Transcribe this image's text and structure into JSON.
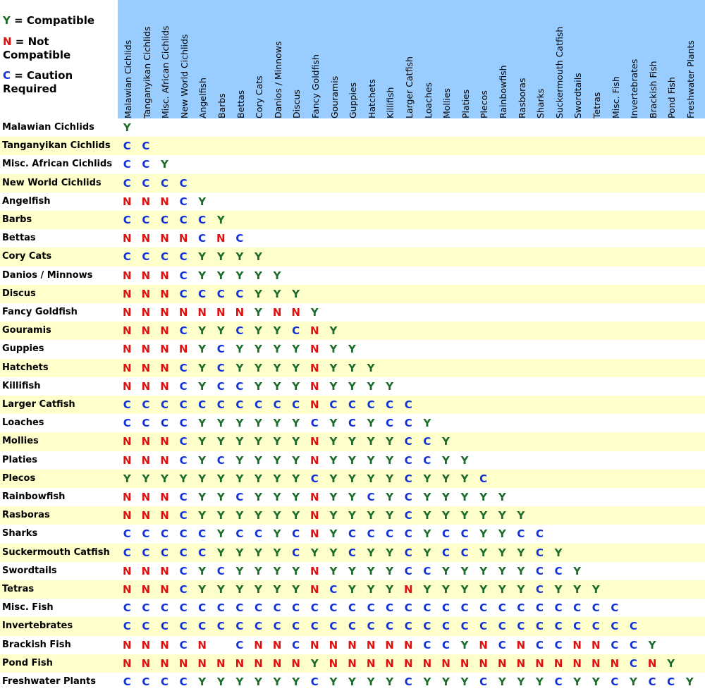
{
  "legend": [
    {
      "symbol": "Y",
      "text": "= Compatible"
    },
    {
      "symbol": "N",
      "text": "= Not Compatible"
    },
    {
      "symbol": "C",
      "text": "= Caution Required"
    }
  ],
  "symbol_colors": {
    "Y": "#1b6b2b",
    "N": "#e01010",
    "C": "#1030d8"
  },
  "columns": [
    "Malawian Cichlids",
    "Tanganyikan Cichlids",
    "Misc. African Cichlids",
    "New World Cichlids",
    "Angelfish",
    "Barbs",
    "Bettas",
    "Cory Cats",
    "Danios / Minnows",
    "Discus",
    "Fancy Goldfish",
    "Gouramis",
    "Guppies",
    "Hatchets",
    "Killifish",
    "Larger Catfish",
    "Loaches",
    "Mollies",
    "Platies",
    "Plecos",
    "Rainbowfish",
    "Rasboras",
    "Sharks",
    "Suckermouth Catfish",
    "Swordtails",
    "Tetras",
    "Misc. Fish",
    "Invertebrates",
    "Brackish Fish",
    "Pond Fish",
    "Freshwater Plants"
  ],
  "rows": [
    {
      "label": "Malawian Cichlids",
      "cells": [
        "Y"
      ]
    },
    {
      "label": "Tanganyikan Cichlids",
      "cells": [
        "C",
        "C"
      ]
    },
    {
      "label": "Misc. African Cichlids",
      "cells": [
        "C",
        "C",
        "Y"
      ]
    },
    {
      "label": "New World Cichlids",
      "cells": [
        "C",
        "C",
        "C",
        "C"
      ]
    },
    {
      "label": "Angelfish",
      "cells": [
        "N",
        "N",
        "N",
        "C",
        "Y"
      ]
    },
    {
      "label": "Barbs",
      "cells": [
        "C",
        "C",
        "C",
        "C",
        "C",
        "Y"
      ]
    },
    {
      "label": "Bettas",
      "cells": [
        "N",
        "N",
        "N",
        "N",
        "C",
        "N",
        "C"
      ]
    },
    {
      "label": "Cory Cats",
      "cells": [
        "C",
        "C",
        "C",
        "C",
        "Y",
        "Y",
        "Y",
        "Y"
      ]
    },
    {
      "label": "Danios / Minnows",
      "cells": [
        "N",
        "N",
        "N",
        "C",
        "Y",
        "Y",
        "Y",
        "Y",
        "Y"
      ]
    },
    {
      "label": "Discus",
      "cells": [
        "N",
        "N",
        "N",
        "C",
        "C",
        "C",
        "C",
        "Y",
        "Y",
        "Y"
      ]
    },
    {
      "label": "Fancy Goldfish",
      "cells": [
        "N",
        "N",
        "N",
        "N",
        "N",
        "N",
        "N",
        "Y",
        "N",
        "N",
        "Y"
      ]
    },
    {
      "label": "Gouramis",
      "cells": [
        "N",
        "N",
        "N",
        "C",
        "Y",
        "Y",
        "C",
        "Y",
        "Y",
        "C",
        "N",
        "Y"
      ]
    },
    {
      "label": "Guppies",
      "cells": [
        "N",
        "N",
        "N",
        "N",
        "Y",
        "C",
        "Y",
        "Y",
        "Y",
        "Y",
        "N",
        "Y",
        "Y"
      ]
    },
    {
      "label": "Hatchets",
      "cells": [
        "N",
        "N",
        "N",
        "C",
        "Y",
        "C",
        "Y",
        "Y",
        "Y",
        "Y",
        "N",
        "Y",
        "Y",
        "Y"
      ]
    },
    {
      "label": "Killifish",
      "cells": [
        "N",
        "N",
        "N",
        "C",
        "Y",
        "C",
        "C",
        "Y",
        "Y",
        "Y",
        "N",
        "Y",
        "Y",
        "Y",
        "Y"
      ]
    },
    {
      "label": "Larger Catfish",
      "cells": [
        "C",
        "C",
        "C",
        "C",
        "C",
        "C",
        "C",
        "C",
        "C",
        "C",
        "N",
        "C",
        "C",
        "C",
        "C",
        "C"
      ]
    },
    {
      "label": "Loaches",
      "cells": [
        "C",
        "C",
        "C",
        "C",
        "Y",
        "Y",
        "Y",
        "Y",
        "Y",
        "Y",
        "C",
        "Y",
        "C",
        "Y",
        "C",
        "C",
        "Y"
      ]
    },
    {
      "label": "Mollies",
      "cells": [
        "N",
        "N",
        "N",
        "C",
        "Y",
        "Y",
        "Y",
        "Y",
        "Y",
        "Y",
        "N",
        "Y",
        "Y",
        "Y",
        "Y",
        "C",
        "C",
        "Y"
      ]
    },
    {
      "label": "Platies",
      "cells": [
        "N",
        "N",
        "N",
        "C",
        "Y",
        "C",
        "Y",
        "Y",
        "Y",
        "Y",
        "N",
        "Y",
        "Y",
        "Y",
        "Y",
        "C",
        "C",
        "Y",
        "Y"
      ]
    },
    {
      "label": "Plecos",
      "cells": [
        "Y",
        "Y",
        "Y",
        "Y",
        "Y",
        "Y",
        "Y",
        "Y",
        "Y",
        "Y",
        "C",
        "Y",
        "Y",
        "Y",
        "Y",
        "C",
        "Y",
        "Y",
        "Y",
        "C"
      ]
    },
    {
      "label": "Rainbowfish",
      "cells": [
        "N",
        "N",
        "N",
        "C",
        "Y",
        "Y",
        "C",
        "Y",
        "Y",
        "Y",
        "N",
        "Y",
        "Y",
        "C",
        "Y",
        "C",
        "Y",
        "Y",
        "Y",
        "Y",
        "Y"
      ]
    },
    {
      "label": "Rasboras",
      "cells": [
        "N",
        "N",
        "N",
        "C",
        "Y",
        "Y",
        "Y",
        "Y",
        "Y",
        "Y",
        "N",
        "Y",
        "Y",
        "Y",
        "Y",
        "C",
        "Y",
        "Y",
        "Y",
        "Y",
        "Y",
        "Y"
      ]
    },
    {
      "label": "Sharks",
      "cells": [
        "C",
        "C",
        "C",
        "C",
        "C",
        "Y",
        "C",
        "C",
        "Y",
        "C",
        "N",
        "Y",
        "C",
        "C",
        "C",
        "C",
        "Y",
        "C",
        "C",
        "Y",
        "Y",
        "C",
        "C"
      ]
    },
    {
      "label": "Suckermouth Catfish",
      "cells": [
        "C",
        "C",
        "C",
        "C",
        "C",
        "Y",
        "Y",
        "Y",
        "Y",
        "C",
        "Y",
        "Y",
        "C",
        "Y",
        "Y",
        "C",
        "Y",
        "C",
        "C",
        "Y",
        "Y",
        "Y",
        "C",
        "Y"
      ]
    },
    {
      "label": "Swordtails",
      "cells": [
        "N",
        "N",
        "N",
        "C",
        "Y",
        "C",
        "Y",
        "Y",
        "Y",
        "Y",
        "N",
        "Y",
        "Y",
        "Y",
        "Y",
        "C",
        "C",
        "Y",
        "Y",
        "Y",
        "Y",
        "Y",
        "C",
        "C",
        "Y"
      ]
    },
    {
      "label": "Tetras",
      "cells": [
        "N",
        "N",
        "N",
        "C",
        "Y",
        "Y",
        "Y",
        "Y",
        "Y",
        "Y",
        "N",
        "C",
        "Y",
        "Y",
        "Y",
        "N",
        "Y",
        "Y",
        "Y",
        "Y",
        "Y",
        "Y",
        "C",
        "Y",
        "Y",
        "Y"
      ]
    },
    {
      "label": "Misc. Fish",
      "cells": [
        "C",
        "C",
        "C",
        "C",
        "C",
        "C",
        "C",
        "C",
        "C",
        "C",
        "C",
        "C",
        "C",
        "C",
        "C",
        "C",
        "C",
        "C",
        "C",
        "C",
        "C",
        "C",
        "C",
        "C",
        "C",
        "C",
        "C"
      ]
    },
    {
      "label": "Invertebrates",
      "cells": [
        "C",
        "C",
        "C",
        "C",
        "C",
        "C",
        "C",
        "C",
        "C",
        "C",
        "C",
        "C",
        "C",
        "C",
        "C",
        "C",
        "C",
        "C",
        "C",
        "C",
        "C",
        "C",
        "C",
        "C",
        "C",
        "C",
        "C",
        "C"
      ]
    },
    {
      "label": "Brackish Fish",
      "cells": [
        "N",
        "N",
        "N",
        "C",
        "N",
        null,
        "C",
        "N",
        "N",
        "C",
        "N",
        "N",
        "N",
        "N",
        "N",
        "N",
        "C",
        "C",
        "Y",
        "N",
        "C",
        "N",
        "C",
        "C",
        "N",
        "N",
        "C",
        "C",
        "Y"
      ]
    },
    {
      "label": "Pond Fish",
      "cells": [
        "N",
        "N",
        "N",
        "N",
        "N",
        "N",
        "N",
        "N",
        "N",
        "N",
        "Y",
        "N",
        "N",
        "N",
        "N",
        "N",
        "N",
        "N",
        "N",
        "N",
        "N",
        "N",
        "N",
        "N",
        "N",
        "N",
        "N",
        "C",
        "N",
        "Y"
      ]
    },
    {
      "label": "Freshwater Plants",
      "cells": [
        "C",
        "C",
        "C",
        "C",
        "Y",
        "Y",
        "Y",
        "Y",
        "Y",
        "Y",
        "C",
        "Y",
        "Y",
        "Y",
        "Y",
        "C",
        "Y",
        "Y",
        "Y",
        "C",
        "Y",
        "Y",
        "Y",
        "C",
        "Y",
        "Y",
        "C",
        "Y",
        "C",
        "C",
        "Y"
      ]
    }
  ]
}
